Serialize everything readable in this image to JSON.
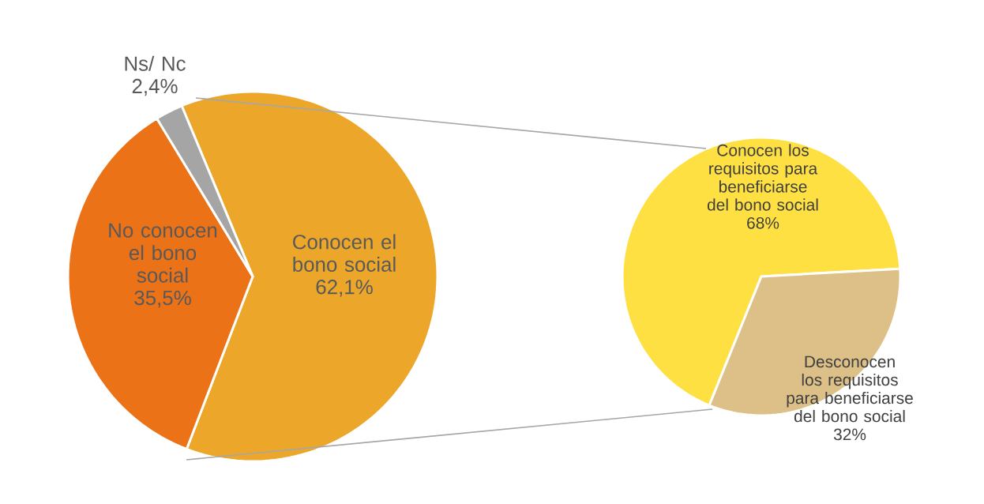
{
  "chart_data": [
    {
      "type": "pie",
      "categories": [
        "Conocen el bono social",
        "No conocen el bono social",
        "Ns/ Nc"
      ],
      "values": [
        62.1,
        35.5,
        2.4
      ],
      "value_labels": [
        "62,1%",
        "35,5%",
        "2,4%"
      ],
      "colors": [
        "#eca72a",
        "#ec7218",
        "#a5a5a5"
      ]
    },
    {
      "type": "pie",
      "categories": [
        "Conocen los requisitos para beneficiarse del bono social",
        "Desconocen los requisitos para beneficiarse del bono social"
      ],
      "values": [
        68,
        32
      ],
      "value_labels": [
        "68%",
        "32%"
      ],
      "colors": [
        "#ffe042",
        "#dcc088"
      ]
    }
  ]
}
